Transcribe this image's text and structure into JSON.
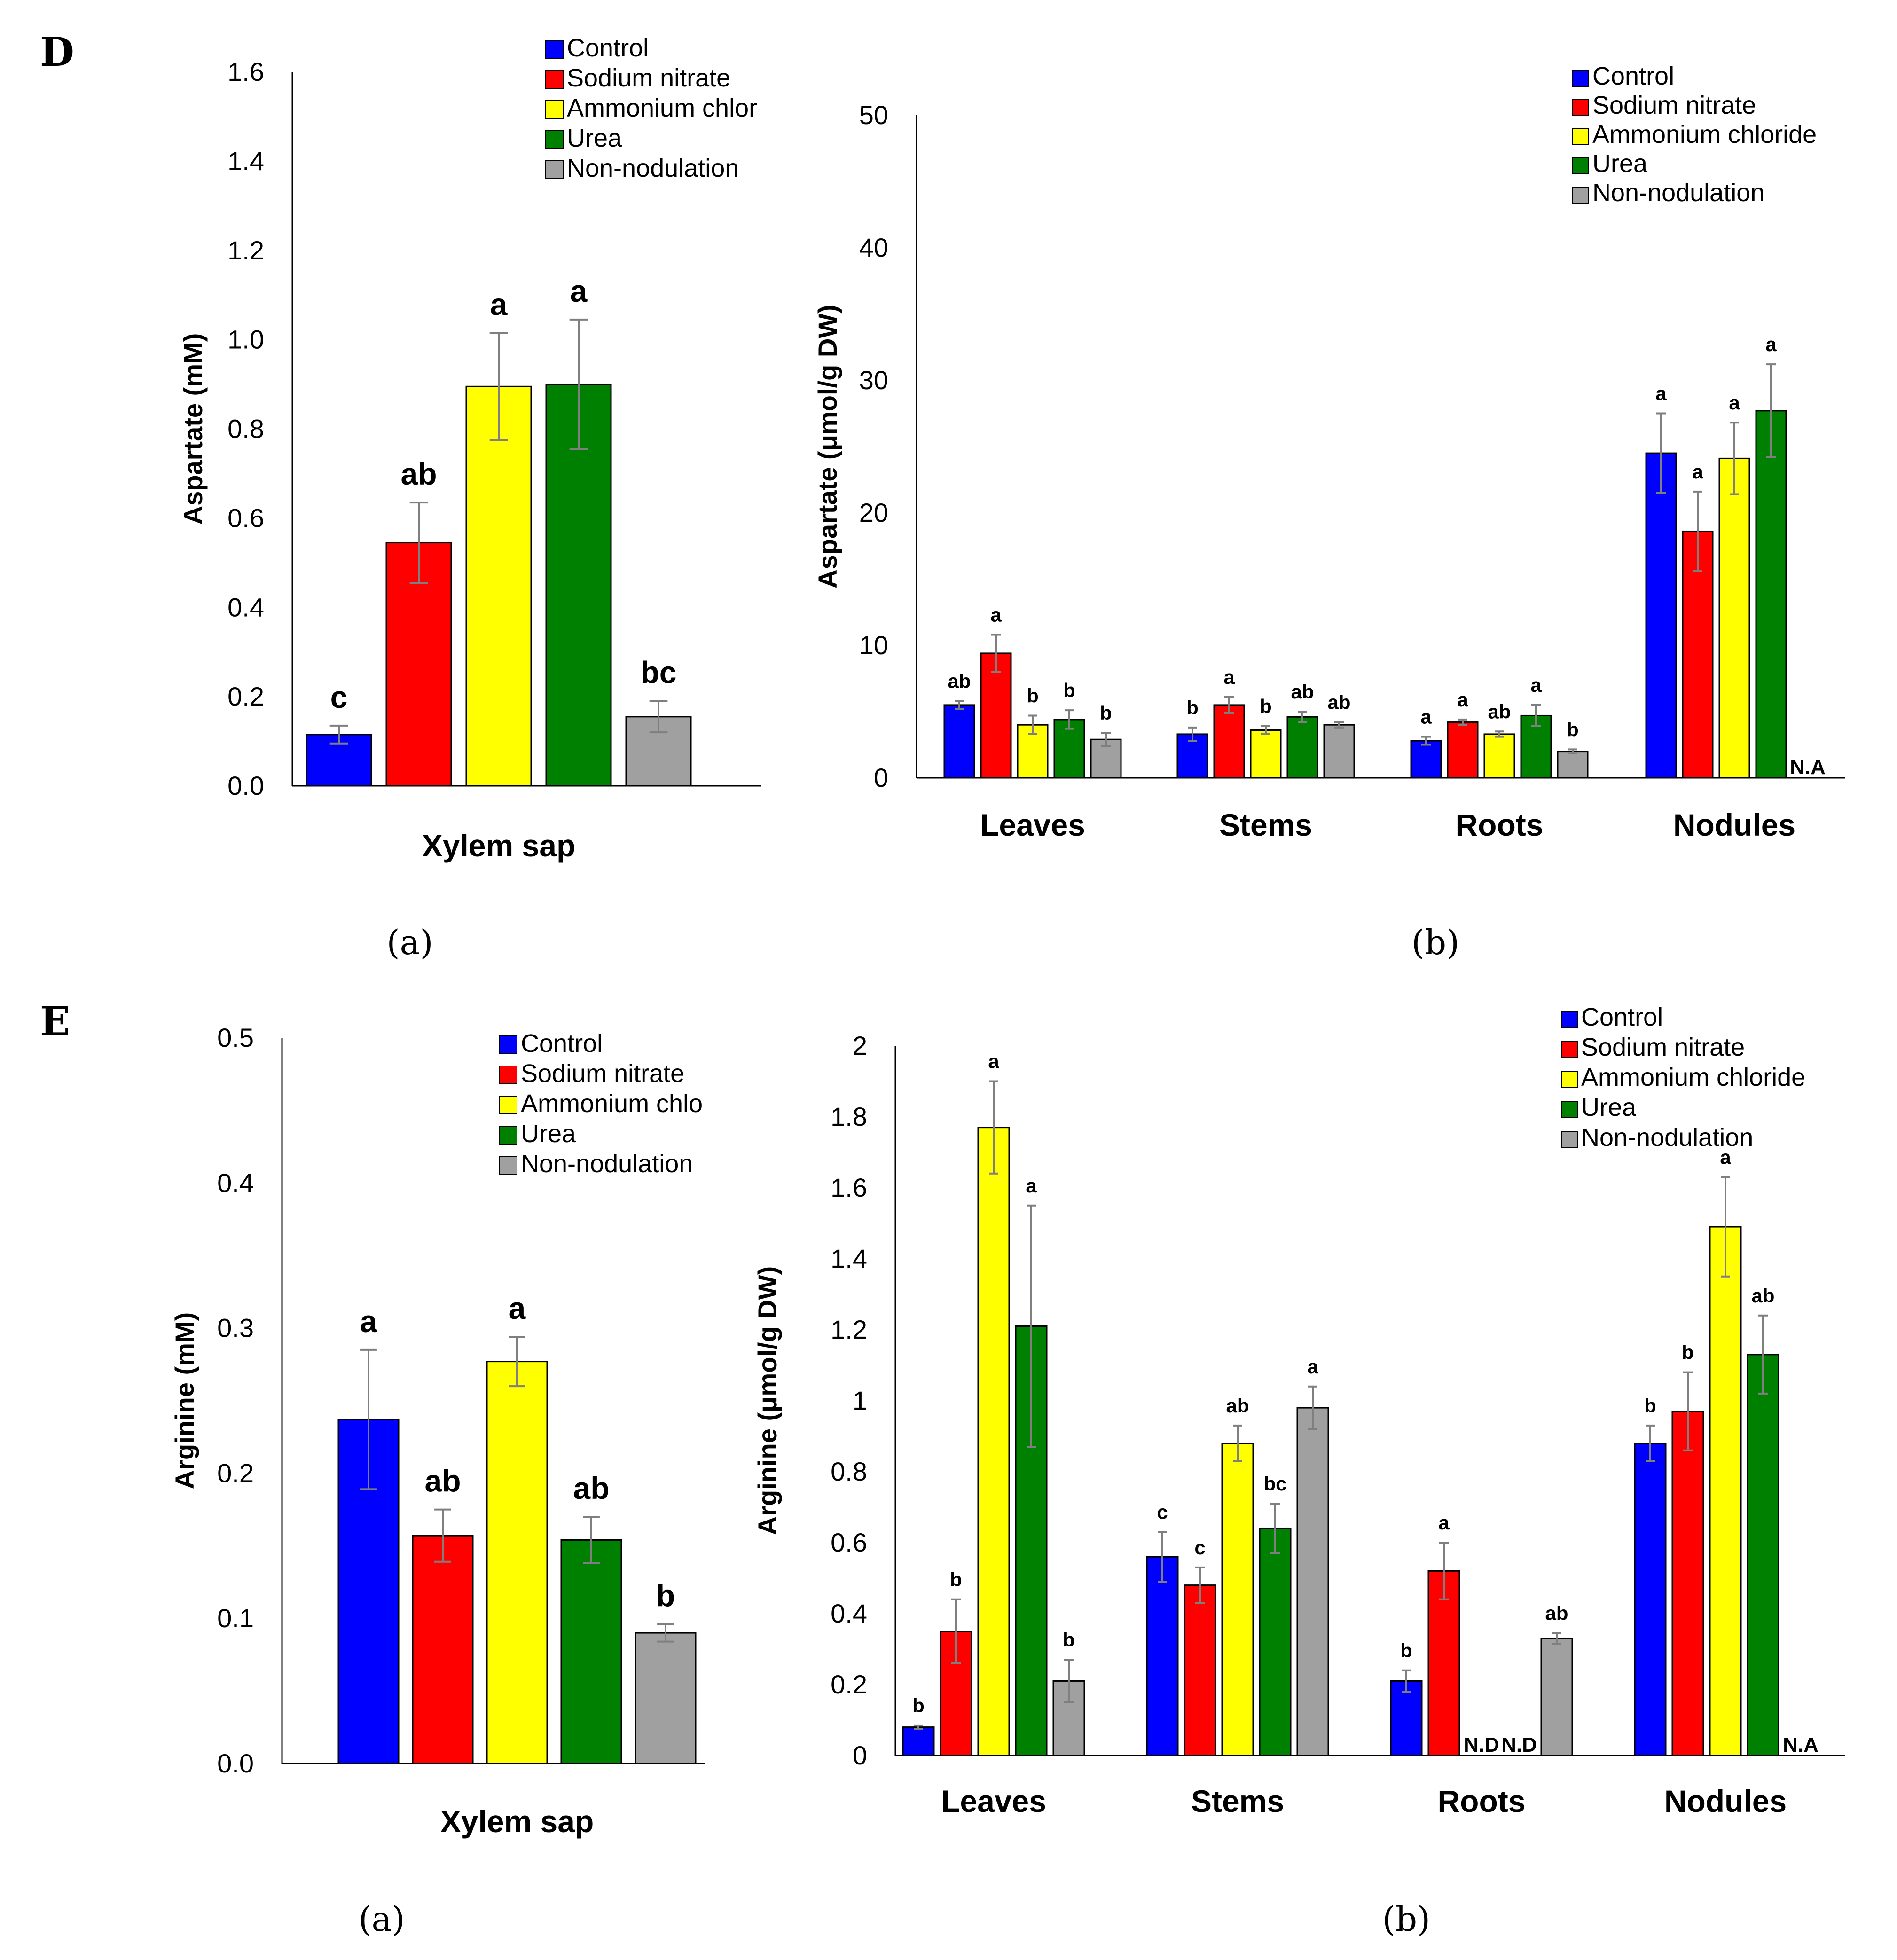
{
  "panel_letters": [
    "D",
    "E"
  ],
  "subplot_labels": [
    "(a)",
    "(b)"
  ],
  "colors": {
    "Control": "#0000ff",
    "Sodium nitrate": "#ff0000",
    "Ammonium chloride": "#ffff00",
    "Urea": "#008000",
    "Non-nodulation": "#a0a0a0"
  },
  "chart_data": [
    {
      "id": "D-a",
      "type": "bar",
      "title": "",
      "xlabel": "Xylem sap",
      "ylabel": "Aspartate  (mM)",
      "ylim": [
        0,
        1.6
      ],
      "yticks": [
        "0.0",
        "0.2",
        "0.4",
        "0.6",
        "0.8",
        "1.0",
        "1.2",
        "1.4",
        "1.6"
      ],
      "legend": [
        "Control",
        "Sodium nitrate",
        "Ammonium chlor",
        "Urea",
        "Non-nodulation"
      ],
      "categories": [
        "Xylem sap"
      ],
      "series": [
        {
          "name": "Control",
          "values": [
            0.115
          ],
          "errors": [
            0.02
          ],
          "labels": [
            "c"
          ]
        },
        {
          "name": "Sodium nitrate",
          "values": [
            0.545
          ],
          "errors": [
            0.09
          ],
          "labels": [
            "ab"
          ]
        },
        {
          "name": "Ammonium chloride",
          "values": [
            0.895
          ],
          "errors": [
            0.12
          ],
          "labels": [
            "a"
          ]
        },
        {
          "name": "Urea",
          "values": [
            0.9
          ],
          "errors": [
            0.145
          ],
          "labels": [
            "a"
          ]
        },
        {
          "name": "Non-nodulation",
          "values": [
            0.155
          ],
          "errors": [
            0.035
          ],
          "labels": [
            "bc"
          ]
        }
      ]
    },
    {
      "id": "D-b",
      "type": "bar",
      "title": "",
      "xlabel": "",
      "ylabel": "Aspartate  (μmol/g DW)",
      "ylim": [
        0,
        50
      ],
      "yticks": [
        "0",
        "10",
        "20",
        "30",
        "40",
        "50"
      ],
      "legend": [
        "Control",
        "Sodium nitrate",
        "Ammonium chloride",
        "Urea",
        "Non-nodulation"
      ],
      "categories": [
        "Leaves",
        "Stems",
        "Roots",
        "Nodules"
      ],
      "series": [
        {
          "name": "Control",
          "values": [
            5.5,
            3.3,
            2.8,
            24.5
          ],
          "errors": [
            0.3,
            0.5,
            0.3,
            3.0
          ],
          "labels": [
            "ab",
            "b",
            "a",
            "a"
          ]
        },
        {
          "name": "Sodium nitrate",
          "values": [
            9.4,
            5.5,
            4.2,
            18.6
          ],
          "errors": [
            1.4,
            0.6,
            0.2,
            3.0
          ],
          "labels": [
            "a",
            "a",
            "a",
            "a"
          ]
        },
        {
          "name": "Ammonium chloride",
          "values": [
            4.0,
            3.6,
            3.3,
            24.1
          ],
          "errors": [
            0.7,
            0.3,
            0.2,
            2.7
          ],
          "labels": [
            "b",
            "b",
            "ab",
            "a"
          ]
        },
        {
          "name": "Urea",
          "values": [
            4.4,
            4.6,
            4.7,
            27.7
          ],
          "errors": [
            0.7,
            0.4,
            0.8,
            3.5
          ],
          "labels": [
            "b",
            "ab",
            "a",
            "a"
          ]
        },
        {
          "name": "Non-nodulation",
          "values": [
            2.9,
            4.0,
            2.0,
            null
          ],
          "errors": [
            0.5,
            0.2,
            0.15,
            null
          ],
          "labels": [
            "b",
            "ab",
            "b",
            ""
          ]
        }
      ],
      "annotations": [
        {
          "category": "Nodules",
          "series": "Non-nodulation",
          "text": "N.A"
        }
      ]
    },
    {
      "id": "E-a",
      "type": "bar",
      "title": "",
      "xlabel": "Xylem sap",
      "ylabel": "Arginine (mM)",
      "ylim": [
        0,
        0.5
      ],
      "yticks": [
        "0.0",
        "0.1",
        "0.2",
        "0.3",
        "0.4",
        "0.5"
      ],
      "legend": [
        "Control",
        "Sodium nitrate",
        "Ammonium chlo",
        "Urea",
        "Non-nodulation"
      ],
      "categories": [
        "Xylem sap"
      ],
      "series": [
        {
          "name": "Control",
          "values": [
            0.237
          ],
          "errors": [
            0.048
          ],
          "labels": [
            "a"
          ]
        },
        {
          "name": "Sodium nitrate",
          "values": [
            0.157
          ],
          "errors": [
            0.018
          ],
          "labels": [
            "ab"
          ]
        },
        {
          "name": "Ammonium chloride",
          "values": [
            0.277
          ],
          "errors": [
            0.017
          ],
          "labels": [
            "a"
          ]
        },
        {
          "name": "Urea",
          "values": [
            0.154
          ],
          "errors": [
            0.016
          ],
          "labels": [
            "ab"
          ]
        },
        {
          "name": "Non-nodulation",
          "values": [
            0.09
          ],
          "errors": [
            0.006
          ],
          "labels": [
            "b"
          ]
        }
      ]
    },
    {
      "id": "E-b",
      "type": "bar",
      "title": "",
      "xlabel": "",
      "ylabel": "Arginine (μmol/g DW)",
      "ylim": [
        0,
        2
      ],
      "yticks": [
        "0",
        "0.2",
        "0.4",
        "0.6",
        "0.8",
        "1",
        "1.2",
        "1.4",
        "1.6",
        "1.8",
        "2"
      ],
      "legend": [
        "Control",
        "Sodium nitrate",
        "Ammonium chloride",
        "Urea",
        "Non-nodulation"
      ],
      "categories": [
        "Leaves",
        "Stems",
        "Roots",
        "Nodules"
      ],
      "series": [
        {
          "name": "Control",
          "values": [
            0.08,
            0.56,
            0.21,
            0.88
          ],
          "errors": [
            0.005,
            0.07,
            0.03,
            0.05
          ],
          "labels": [
            "b",
            "c",
            "b",
            "b"
          ]
        },
        {
          "name": "Sodium nitrate",
          "values": [
            0.35,
            0.48,
            0.52,
            0.97
          ],
          "errors": [
            0.09,
            0.05,
            0.08,
            0.11
          ],
          "labels": [
            "b",
            "c",
            "a",
            "b"
          ]
        },
        {
          "name": "Ammonium chloride",
          "values": [
            1.77,
            0.88,
            null,
            1.49
          ],
          "errors": [
            0.13,
            0.05,
            null,
            0.14
          ],
          "labels": [
            "a",
            "ab",
            "",
            "a"
          ]
        },
        {
          "name": "Urea",
          "values": [
            1.21,
            0.64,
            null,
            1.13
          ],
          "errors": [
            0.34,
            0.07,
            null,
            0.11
          ],
          "labels": [
            "a",
            "bc",
            "",
            "ab"
          ]
        },
        {
          "name": "Non-nodulation",
          "values": [
            0.21,
            0.98,
            0.33,
            null
          ],
          "errors": [
            0.06,
            0.06,
            0.015,
            null
          ],
          "labels": [
            "b",
            "a",
            "ab",
            ""
          ]
        }
      ],
      "annotations": [
        {
          "category": "Roots",
          "series": "Ammonium chloride",
          "text": "N.D"
        },
        {
          "category": "Roots",
          "series": "Urea",
          "text": "N.D"
        },
        {
          "category": "Nodules",
          "series": "Non-nodulation",
          "text": "N.A"
        }
      ]
    }
  ]
}
